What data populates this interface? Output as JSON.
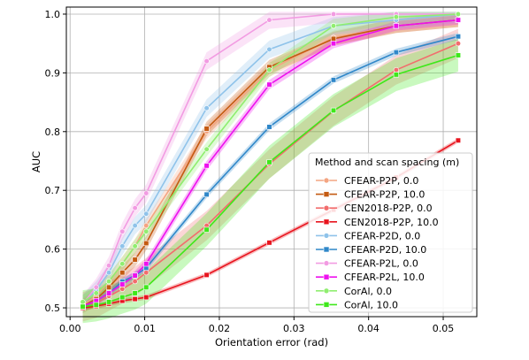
{
  "chart_data": {
    "type": "line",
    "title": "",
    "xlabel": "Orientation error (rad)",
    "ylabel": "AUC",
    "xlim": [
      -0.0005,
      0.0545
    ],
    "ylim": [
      0.485,
      1.012
    ],
    "xticks": [
      0.0,
      0.01,
      0.02,
      0.03,
      0.04,
      0.05
    ],
    "xtick_labels": [
      "0.00",
      "0.01",
      "0.02",
      "0.03",
      "0.04",
      "0.05"
    ],
    "yticks": [
      0.5,
      0.6,
      0.7,
      0.8,
      0.9,
      1.0
    ],
    "ytick_labels": [
      "0.5",
      "0.6",
      "0.7",
      "0.8",
      "0.9",
      "1.0"
    ],
    "grid": true,
    "legend_title": "Method and scan spacing (m)",
    "legend_position": "lower-right",
    "x": [
      0.0017,
      0.0035,
      0.0052,
      0.007,
      0.0087,
      0.0102,
      0.0183,
      0.0267,
      0.0353,
      0.0437,
      0.052
    ],
    "series": [
      {
        "name": "CFEAR-P2P, 0.0",
        "color": "#f4a582",
        "marker": "circle",
        "values": [
          0.505,
          0.52,
          0.545,
          0.575,
          0.605,
          0.64,
          0.8,
          0.905,
          0.96,
          0.98,
          0.99
        ],
        "band": 0.012
      },
      {
        "name": "CFEAR-P2P, 10.0",
        "color": "#c45a11",
        "marker": "square",
        "values": [
          0.503,
          0.515,
          0.535,
          0.56,
          0.582,
          0.61,
          0.805,
          0.91,
          0.958,
          0.98,
          0.99
        ],
        "band": 0.012
      },
      {
        "name": "CEN2018-P2P, 0.0",
        "color": "#f26d6d",
        "marker": "circle",
        "values": [
          0.502,
          0.508,
          0.52,
          0.532,
          0.545,
          0.56,
          0.64,
          0.745,
          0.835,
          0.905,
          0.95
        ],
        "band": 0.025
      },
      {
        "name": "CEN2018-P2P, 10.0",
        "color": "#e8141e",
        "marker": "square",
        "values": [
          0.5,
          0.503,
          0.507,
          0.512,
          0.515,
          0.518,
          0.556,
          0.611,
          0.667,
          0.722,
          0.785
        ],
        "band": 0.004
      },
      {
        "name": "CFEAR-P2D, 0.0",
        "color": "#8fc3ea",
        "marker": "circle",
        "values": [
          0.507,
          0.53,
          0.56,
          0.605,
          0.64,
          0.66,
          0.84,
          0.94,
          0.98,
          0.99,
          1.0
        ],
        "band": 0.015
      },
      {
        "name": "CFEAR-P2D, 10.0",
        "color": "#2f87c9",
        "marker": "square",
        "values": [
          0.502,
          0.512,
          0.525,
          0.545,
          0.555,
          0.568,
          0.693,
          0.808,
          0.888,
          0.935,
          0.962
        ],
        "band": 0.006
      },
      {
        "name": "CFEAR-P2L, 0.0",
        "color": "#f29be2",
        "marker": "circle",
        "values": [
          0.507,
          0.535,
          0.572,
          0.63,
          0.67,
          0.695,
          0.92,
          0.99,
          1.0,
          1.0,
          1.0
        ],
        "band": 0.015
      },
      {
        "name": "CFEAR-P2L, 10.0",
        "color": "#ee10ee",
        "marker": "square",
        "values": [
          0.503,
          0.512,
          0.525,
          0.54,
          0.555,
          0.575,
          0.742,
          0.88,
          0.95,
          0.98,
          0.99
        ],
        "band": 0.008
      },
      {
        "name": "CorAl, 0.0",
        "color": "#90ee70",
        "marker": "circle",
        "values": [
          0.51,
          0.525,
          0.545,
          0.575,
          0.605,
          0.63,
          0.77,
          0.905,
          0.98,
          0.995,
          1.0
        ],
        "band": 0.012
      },
      {
        "name": "CorAl, 10.0",
        "color": "#3ee81a",
        "marker": "square",
        "values": [
          0.502,
          0.505,
          0.51,
          0.518,
          0.525,
          0.535,
          0.633,
          0.748,
          0.836,
          0.897,
          0.93
        ],
        "band": 0.028
      }
    ]
  }
}
